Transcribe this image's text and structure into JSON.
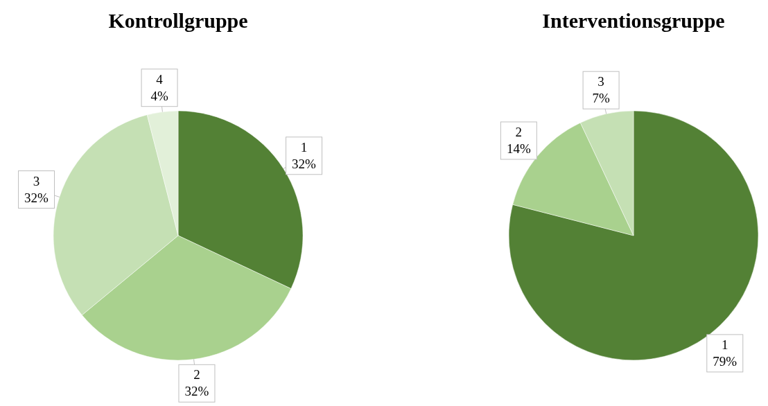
{
  "chart_data": [
    {
      "type": "pie",
      "title": "Kontrollgruppe",
      "categories": [
        "1",
        "2",
        "3",
        "4"
      ],
      "values": [
        32,
        32,
        32,
        4
      ],
      "colors": [
        "#538135",
        "#a9d18e",
        "#c5e0b4",
        "#e2f0d9"
      ],
      "value_labels": [
        "32%",
        "32%",
        "32%",
        "4%"
      ]
    },
    {
      "type": "pie",
      "title": "Interventionsgruppe",
      "categories": [
        "1",
        "2",
        "3"
      ],
      "values": [
        79,
        14,
        7
      ],
      "colors": [
        "#538135",
        "#a9d18e",
        "#c5e0b4"
      ],
      "value_labels": [
        "79%",
        "14%",
        "7%"
      ]
    }
  ]
}
